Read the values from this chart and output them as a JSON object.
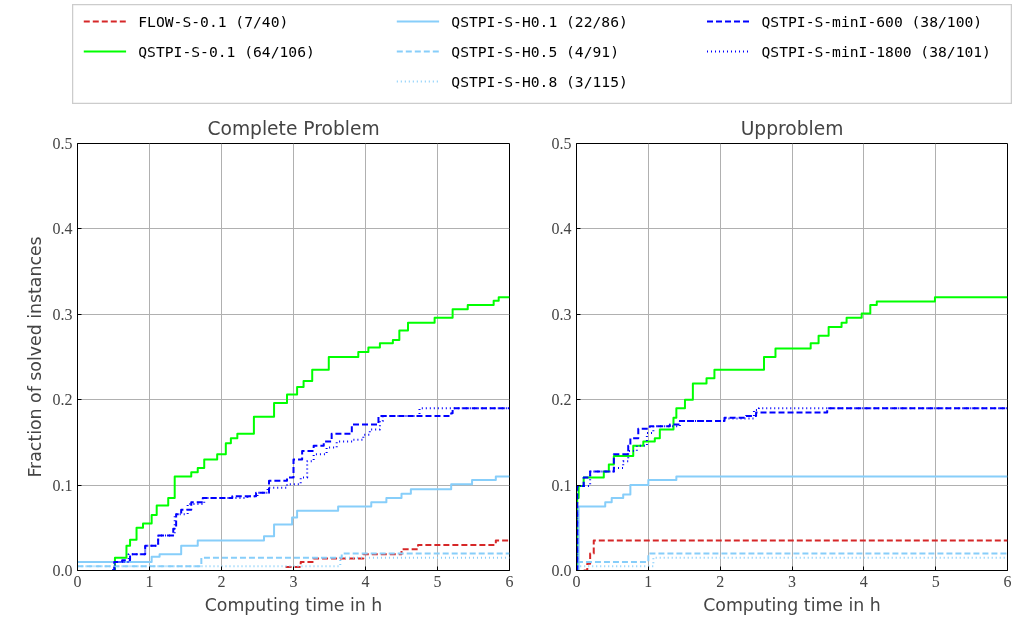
{
  "chart_data": [
    {
      "type": "step",
      "title": "Complete Problem",
      "xlabel": "Computing time in h",
      "ylabel": "Fraction of solved instances",
      "xlim": [
        0,
        6
      ],
      "ylim": [
        0,
        0.5
      ],
      "xticks": [
        0,
        1,
        2,
        3,
        4,
        5,
        6
      ],
      "yticks": [
        {
          "value": 0,
          "label": "0.0"
        },
        0.1,
        0.2,
        0.3,
        0.4,
        0.5
      ],
      "grid": true,
      "legend": "top",
      "series": [
        {
          "name": "FLOW-S-0.1 (7/40)",
          "color": "#d62728",
          "line_style": "dashed",
          "x": [
            2.89,
            3.1,
            3.28,
            3.97,
            4.5,
            4.73,
            5.81,
            6
          ],
          "values": [
            0.004,
            0.01,
            0.014,
            0.019,
            0.025,
            0.03,
            0.035,
            0.035
          ]
        },
        {
          "name": "QSTPI-S-0.1 (64/106)",
          "color": "#00ff00",
          "line_style": "solid",
          "x": [
            0.48,
            0.52,
            0.68,
            0.73,
            0.82,
            0.91,
            1.03,
            1.1,
            1.26,
            1.35,
            1.58,
            1.67,
            1.76,
            1.94,
            2.06,
            2.13,
            2.22,
            2.45,
            2.73,
            2.91,
            3.05,
            3.14,
            3.26,
            3.49,
            3.9,
            4.04,
            4.2,
            4.38,
            4.47,
            4.59,
            4.96,
            5.21,
            5.42,
            5.78,
            5.85,
            6
          ],
          "values": [
            0,
            0.015,
            0.029,
            0.036,
            0.05,
            0.055,
            0.065,
            0.076,
            0.085,
            0.11,
            0.115,
            0.12,
            0.13,
            0.136,
            0.149,
            0.155,
            0.16,
            0.18,
            0.196,
            0.206,
            0.215,
            0.222,
            0.235,
            0.25,
            0.256,
            0.261,
            0.266,
            0.27,
            0.281,
            0.29,
            0.296,
            0.306,
            0.311,
            0.316,
            0.32,
            0.32
          ]
        },
        {
          "name": "QSTPI-S-H0.1 (22/86)",
          "color": "#87cefa",
          "line_style": "solid",
          "x": [
            0,
            1.03,
            1.14,
            1.44,
            1.67,
            2.59,
            2.73,
            2.98,
            3.05,
            3.62,
            4.08,
            4.29,
            4.5,
            4.63,
            5.19,
            5.48,
            5.81,
            6
          ],
          "values": [
            0.01,
            0.016,
            0.019,
            0.029,
            0.035,
            0.04,
            0.054,
            0.062,
            0.07,
            0.075,
            0.08,
            0.085,
            0.09,
            0.095,
            0.101,
            0.106,
            0.11,
            0.11
          ]
        },
        {
          "name": "QSTPI-S-H0.5 (4/91)",
          "color": "#87cefa",
          "line_style": "dashed",
          "x": [
            0,
            1.72,
            3.67,
            6
          ],
          "values": [
            0.005,
            0.015,
            0.02,
            0.02
          ]
        },
        {
          "name": "QSTPI-S-H0.8 (3/115)",
          "color": "#87cefa",
          "line_style": "dotted",
          "x": [
            0,
            3.65,
            6
          ],
          "values": [
            0.005,
            0.015,
            0.015
          ]
        },
        {
          "name": "QSTPI-S-minI-600 (38/100)",
          "color": "#0000ff",
          "line_style": "dashed",
          "x": [
            0.48,
            0.51,
            0.62,
            0.73,
            0.94,
            1.12,
            1.33,
            1.37,
            1.44,
            1.58,
            1.74,
            2.15,
            2.48,
            2.66,
            2.91,
            3.0,
            3.12,
            3.28,
            3.42,
            3.53,
            3.81,
            4.18,
            5.19,
            5.21,
            6
          ],
          "values": [
            0,
            0.01,
            0.012,
            0.019,
            0.029,
            0.041,
            0.049,
            0.066,
            0.071,
            0.08,
            0.085,
            0.087,
            0.091,
            0.105,
            0.109,
            0.13,
            0.14,
            0.146,
            0.151,
            0.16,
            0.171,
            0.181,
            0.184,
            0.19,
            0.19
          ]
        },
        {
          "name": "QSTPI-S-minI-1800 (38/101)",
          "color": "#0000ff",
          "line_style": "dotted",
          "x": [
            0.48,
            0.52,
            0.71,
            0.94,
            1.12,
            1.35,
            1.53,
            1.76,
            2.36,
            2.5,
            2.64,
            2.91,
            3.1,
            3.19,
            3.28,
            3.46,
            3.6,
            3.83,
            3.97,
            4.06,
            4.2,
            4.24,
            4.75,
            6
          ],
          "values": [
            0,
            0.01,
            0.019,
            0.029,
            0.041,
            0.066,
            0.078,
            0.085,
            0.087,
            0.091,
            0.097,
            0.101,
            0.109,
            0.128,
            0.136,
            0.144,
            0.151,
            0.153,
            0.159,
            0.165,
            0.175,
            0.181,
            0.19,
            0.19
          ]
        }
      ]
    },
    {
      "type": "step",
      "title": "Upproblem",
      "xlabel": "Computing time in h",
      "xlim": [
        0,
        6
      ],
      "ylim": [
        0,
        0.5
      ],
      "xticks": [
        0,
        1,
        2,
        3,
        4,
        5,
        6
      ],
      "yticks": [
        {
          "value": 0,
          "label": "0.0"
        },
        0.1,
        0.2,
        0.3,
        0.4,
        0.5
      ],
      "grid": true,
      "series": [
        {
          "color": "#d62728",
          "line_style": "dashed",
          "x": [
            0.1,
            0.15,
            0.19,
            0.24,
            6
          ],
          "values": [
            0,
            0.008,
            0.02,
            0.035,
            0.035
          ]
        },
        {
          "color": "#00ff00",
          "line_style": "solid",
          "x": [
            0,
            0.01,
            0.03,
            0.1,
            0.38,
            0.45,
            0.52,
            0.79,
            0.93,
            1.09,
            1.16,
            1.35,
            1.39,
            1.51,
            1.62,
            1.81,
            1.92,
            2.61,
            2.77,
            3.26,
            3.37,
            3.51,
            3.69,
            3.76,
            3.97,
            4.09,
            4.18,
            4.99,
            6
          ],
          "values": [
            0,
            0.085,
            0.099,
            0.109,
            0.116,
            0.124,
            0.134,
            0.146,
            0.151,
            0.155,
            0.165,
            0.179,
            0.19,
            0.2,
            0.219,
            0.225,
            0.235,
            0.25,
            0.26,
            0.266,
            0.275,
            0.285,
            0.29,
            0.296,
            0.301,
            0.311,
            0.315,
            0.32,
            0.32
          ]
        },
        {
          "color": "#87cefa",
          "line_style": "solid",
          "x": [
            0,
            0.03,
            0.4,
            0.49,
            0.65,
            0.75,
            1.0,
            1.39,
            6
          ],
          "values": [
            0,
            0.075,
            0.08,
            0.085,
            0.089,
            0.1,
            0.106,
            0.11,
            0.11
          ]
        },
        {
          "color": "#87cefa",
          "line_style": "dashed",
          "x": [
            0,
            0.01,
            1.0,
            6
          ],
          "values": [
            0,
            0.01,
            0.02,
            0.02
          ]
        },
        {
          "color": "#87cefa",
          "line_style": "dotted",
          "x": [
            0,
            0.01,
            1.07,
            6
          ],
          "values": [
            0,
            0.005,
            0.015,
            0.015
          ]
        },
        {
          "color": "#0000ff",
          "line_style": "dashed",
          "x": [
            0,
            0.01,
            0.1,
            0.19,
            0.52,
            0.72,
            0.75,
            0.86,
            1.02,
            1.3,
            1.44,
            2.06,
            2.36,
            2.5,
            3.49,
            6
          ],
          "values": [
            0,
            0.099,
            0.109,
            0.116,
            0.136,
            0.146,
            0.155,
            0.166,
            0.169,
            0.171,
            0.175,
            0.179,
            0.181,
            0.185,
            0.19,
            0.19
          ]
        },
        {
          "color": "#0000ff",
          "line_style": "dotted",
          "x": [
            0,
            0.01,
            0.19,
            0.52,
            0.65,
            0.72,
            0.84,
            0.98,
            1.07,
            1.44,
            2.06,
            2.47,
            2.54,
            6
          ],
          "values": [
            0,
            0.099,
            0.116,
            0.12,
            0.128,
            0.14,
            0.146,
            0.161,
            0.169,
            0.175,
            0.178,
            0.188,
            0.19,
            0.19
          ]
        }
      ]
    }
  ]
}
